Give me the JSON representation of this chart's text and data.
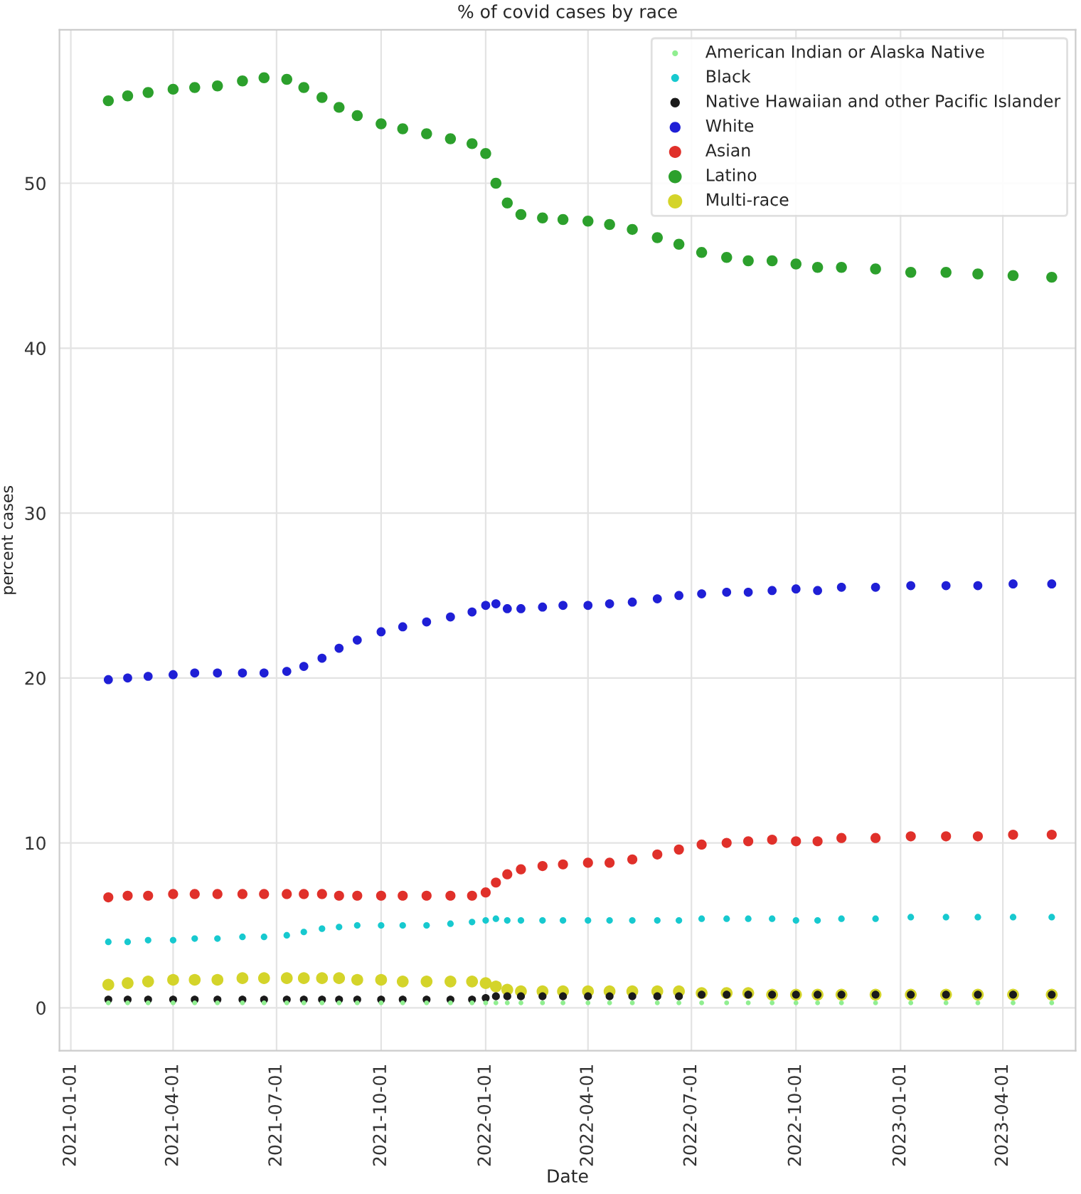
{
  "chart_data": {
    "type": "scatter",
    "title": "% of covid cases by race",
    "xlabel": "Date",
    "ylabel": "percent cases",
    "x": [
      "2021-02-03",
      "2021-02-20",
      "2021-03-10",
      "2021-04-01",
      "2021-04-20",
      "2021-05-10",
      "2021-06-01",
      "2021-06-20",
      "2021-07-10",
      "2021-07-25",
      "2021-08-10",
      "2021-08-25",
      "2021-09-10",
      "2021-10-01",
      "2021-10-20",
      "2021-11-10",
      "2021-12-01",
      "2021-12-20",
      "2022-01-01",
      "2022-01-10",
      "2022-01-20",
      "2022-02-01",
      "2022-02-20",
      "2022-03-10",
      "2022-04-01",
      "2022-04-20",
      "2022-05-10",
      "2022-06-01",
      "2022-06-20",
      "2022-07-10",
      "2022-08-01",
      "2022-08-20",
      "2022-09-10",
      "2022-10-01",
      "2022-10-20",
      "2022-11-10",
      "2022-12-10",
      "2023-01-10",
      "2023-02-10",
      "2023-03-10",
      "2023-04-10",
      "2023-05-14"
    ],
    "series": [
      {
        "name": "American Indian or Alaska Native",
        "color": "#90ee90",
        "values": [
          0.3,
          0.3,
          0.3,
          0.3,
          0.3,
          0.3,
          0.3,
          0.3,
          0.3,
          0.3,
          0.3,
          0.3,
          0.3,
          0.3,
          0.3,
          0.3,
          0.3,
          0.3,
          0.3,
          0.3,
          0.3,
          0.3,
          0.3,
          0.3,
          0.3,
          0.3,
          0.3,
          0.3,
          0.3,
          0.3,
          0.3,
          0.3,
          0.3,
          0.3,
          0.3,
          0.3,
          0.3,
          0.3,
          0.3,
          0.3,
          0.3,
          0.3
        ]
      },
      {
        "name": "Black",
        "color": "#17c9cf",
        "values": [
          4.0,
          4.0,
          4.1,
          4.1,
          4.2,
          4.2,
          4.3,
          4.3,
          4.4,
          4.6,
          4.8,
          4.9,
          5.0,
          5.0,
          5.0,
          5.0,
          5.1,
          5.2,
          5.3,
          5.4,
          5.3,
          5.3,
          5.3,
          5.3,
          5.3,
          5.3,
          5.3,
          5.3,
          5.3,
          5.4,
          5.4,
          5.4,
          5.4,
          5.3,
          5.3,
          5.4,
          5.4,
          5.5,
          5.5,
          5.5,
          5.5,
          5.5
        ]
      },
      {
        "name": "Native Hawaiian and other Pacific Islander",
        "color": "#1a1a1a",
        "values": [
          0.5,
          0.5,
          0.5,
          0.5,
          0.5,
          0.5,
          0.5,
          0.5,
          0.5,
          0.5,
          0.5,
          0.5,
          0.5,
          0.5,
          0.5,
          0.5,
          0.5,
          0.5,
          0.6,
          0.7,
          0.7,
          0.7,
          0.7,
          0.7,
          0.7,
          0.7,
          0.7,
          0.7,
          0.7,
          0.8,
          0.8,
          0.8,
          0.8,
          0.8,
          0.8,
          0.8,
          0.8,
          0.8,
          0.8,
          0.8,
          0.8,
          0.8
        ]
      },
      {
        "name": "White",
        "color": "#1f1fd6",
        "values": [
          19.9,
          20.0,
          20.1,
          20.2,
          20.3,
          20.3,
          20.3,
          20.3,
          20.4,
          20.7,
          21.2,
          21.8,
          22.3,
          22.8,
          23.1,
          23.4,
          23.7,
          24.0,
          24.4,
          24.5,
          24.2,
          24.2,
          24.3,
          24.4,
          24.4,
          24.5,
          24.6,
          24.8,
          25.0,
          25.1,
          25.2,
          25.2,
          25.3,
          25.4,
          25.3,
          25.5,
          25.5,
          25.6,
          25.6,
          25.6,
          25.7,
          25.7
        ]
      },
      {
        "name": "Asian",
        "color": "#e0302a",
        "values": [
          6.7,
          6.8,
          6.8,
          6.9,
          6.9,
          6.9,
          6.9,
          6.9,
          6.9,
          6.9,
          6.9,
          6.8,
          6.8,
          6.8,
          6.8,
          6.8,
          6.8,
          6.8,
          7.0,
          7.6,
          8.1,
          8.4,
          8.6,
          8.7,
          8.8,
          8.8,
          9.0,
          9.3,
          9.6,
          9.9,
          10.0,
          10.1,
          10.2,
          10.1,
          10.1,
          10.3,
          10.3,
          10.4,
          10.4,
          10.4,
          10.5,
          10.5
        ]
      },
      {
        "name": "Latino",
        "color": "#2ca02c",
        "values": [
          55.0,
          55.3,
          55.5,
          55.7,
          55.8,
          55.9,
          56.2,
          56.4,
          56.3,
          55.8,
          55.2,
          54.6,
          54.1,
          53.6,
          53.3,
          53.0,
          52.7,
          52.4,
          51.8,
          50.0,
          48.8,
          48.1,
          47.9,
          47.8,
          47.7,
          47.5,
          47.2,
          46.7,
          46.3,
          45.8,
          45.5,
          45.3,
          45.3,
          45.1,
          44.9,
          44.9,
          44.8,
          44.6,
          44.6,
          44.5,
          44.4,
          44.3
        ]
      },
      {
        "name": "Multi-race",
        "color": "#d4d42a",
        "values": [
          1.4,
          1.5,
          1.6,
          1.7,
          1.7,
          1.7,
          1.8,
          1.8,
          1.8,
          1.8,
          1.8,
          1.8,
          1.7,
          1.7,
          1.6,
          1.6,
          1.6,
          1.6,
          1.5,
          1.3,
          1.1,
          1.0,
          1.0,
          1.0,
          1.0,
          1.0,
          1.0,
          1.0,
          1.0,
          0.9,
          0.9,
          0.9,
          0.8,
          0.8,
          0.8,
          0.8,
          0.8,
          0.8,
          0.8,
          0.8,
          0.8,
          0.8
        ]
      }
    ],
    "xlim": [
      "2020-12-22",
      "2023-06-04"
    ],
    "xticks": [
      {
        "value": "2021-01-01",
        "label": "2021-01-01"
      },
      {
        "value": "2021-04-01",
        "label": "2021-04-01"
      },
      {
        "value": "2021-07-01",
        "label": "2021-07-01"
      },
      {
        "value": "2021-10-01",
        "label": "2021-10-01"
      },
      {
        "value": "2022-01-01",
        "label": "2022-01-01"
      },
      {
        "value": "2022-04-01",
        "label": "2022-04-01"
      },
      {
        "value": "2022-07-01",
        "label": "2022-07-01"
      },
      {
        "value": "2022-10-01",
        "label": "2022-10-01"
      },
      {
        "value": "2023-01-01",
        "label": "2023-01-01"
      },
      {
        "value": "2023-04-01",
        "label": "2023-04-01"
      }
    ],
    "ylim": [
      -2.6,
      59.3
    ],
    "yticks": [
      0,
      10,
      20,
      30,
      40,
      50
    ],
    "grid": true,
    "legend": "top right",
    "marker": "circle"
  }
}
